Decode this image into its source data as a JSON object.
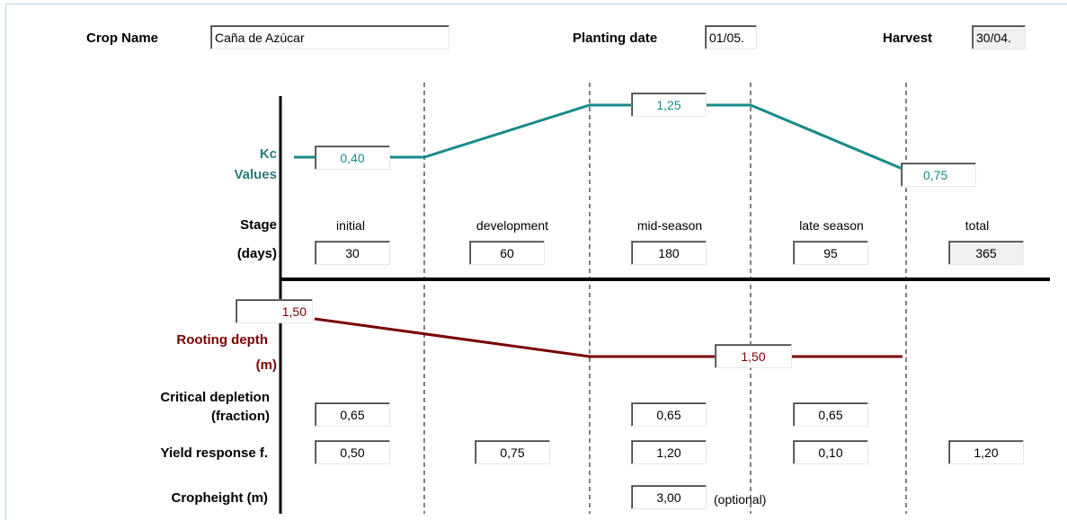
{
  "header": {
    "crop_name_label": "Crop Name",
    "crop_name_value": "Caña de Azúcar",
    "planting_label": "Planting date",
    "planting_value": "01/05.",
    "harvest_label": "Harvest",
    "harvest_value": "30/04."
  },
  "kc": {
    "label_line1": "Kc",
    "label_line2": "Values",
    "initial": "0,40",
    "mid": "1,25",
    "end": "0,75",
    "color": "#1a8a8a"
  },
  "stage": {
    "label": "Stage",
    "days_label": "(days)",
    "names": [
      "initial",
      "development",
      "mid-season",
      "late season",
      "total"
    ],
    "days": [
      "30",
      "60",
      "180",
      "95",
      "365"
    ]
  },
  "rooting": {
    "label": "Rooting depth",
    "unit": "(m)",
    "initial": "1,50",
    "max": "1,50",
    "color": "#7a0000"
  },
  "depletion": {
    "label_line1": "Critical depletion",
    "label_line2": "(fraction)",
    "values": [
      "0,65",
      "0,65",
      "0,65"
    ]
  },
  "yield": {
    "label": "Yield response f.",
    "values": [
      "0,50",
      "0,75",
      "1,20",
      "0,10",
      "1,20"
    ]
  },
  "cropheight": {
    "label": "Cropheight (m)",
    "value": "3,00",
    "note": "(optional)"
  }
}
